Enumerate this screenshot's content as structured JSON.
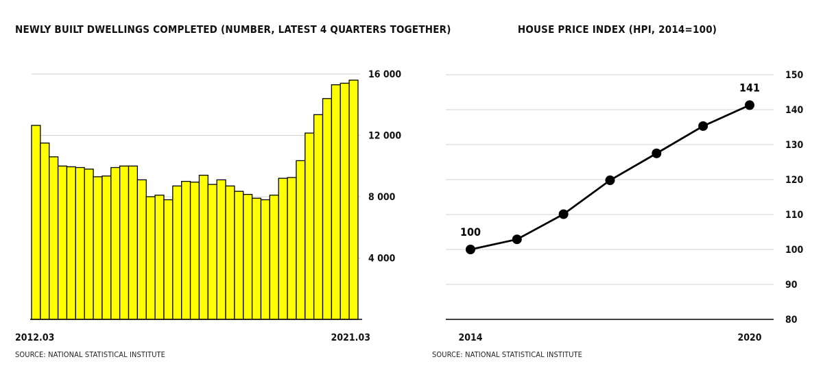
{
  "chart_data": [
    {
      "type": "bar",
      "title": "NEWLY BUILT DWELLINGS COMPLETED (NUMBER, LATEST 4 QUARTERS TOGETHER)",
      "source": "SOURCE: NATIONAL STATISTICAL INSTITUTE",
      "x_tick_labels": [
        "2012.03",
        "2021.03"
      ],
      "y_tick_labels": [
        "4 000",
        "8 000",
        "12 000",
        "16 000"
      ],
      "yticks": [
        4000,
        8000,
        12000,
        16000
      ],
      "ylim": [
        0,
        16000
      ],
      "y_axis_position": "right",
      "grid": true,
      "bar_color": "#ffff00",
      "values": [
        12650,
        11500,
        10600,
        10000,
        9950,
        9900,
        9800,
        9300,
        9350,
        9900,
        10000,
        10000,
        9100,
        8000,
        8100,
        7800,
        8700,
        9000,
        8950,
        9400,
        8800,
        9100,
        8700,
        8350,
        8150,
        7900,
        7800,
        8100,
        9200,
        9250,
        10350,
        12150,
        13350,
        14400,
        15300,
        15400,
        15600
      ]
    },
    {
      "type": "line",
      "title": "HOUSE PRICE INDEX (HPI, 2014=100)",
      "source": "SOURCE: NATIONAL STATISTICAL INSTITUTE",
      "x": [
        2014,
        2015,
        2016,
        2017,
        2018,
        2019,
        2020
      ],
      "x_tick_labels": [
        "2014",
        "2020"
      ],
      "values": [
        100,
        102.9,
        110.1,
        119.8,
        127.5,
        135.3,
        141.3
      ],
      "point_labels": [
        {
          "index": 0,
          "label": "100"
        },
        {
          "index": 6,
          "label": "141"
        }
      ],
      "y_tick_labels": [
        "80",
        "90",
        "100",
        "110",
        "120",
        "130",
        "140",
        "150"
      ],
      "yticks": [
        80,
        90,
        100,
        110,
        120,
        130,
        140,
        150
      ],
      "ylim": [
        80,
        150
      ],
      "y_axis_position": "right",
      "grid": true,
      "line_color": "#000000"
    }
  ]
}
